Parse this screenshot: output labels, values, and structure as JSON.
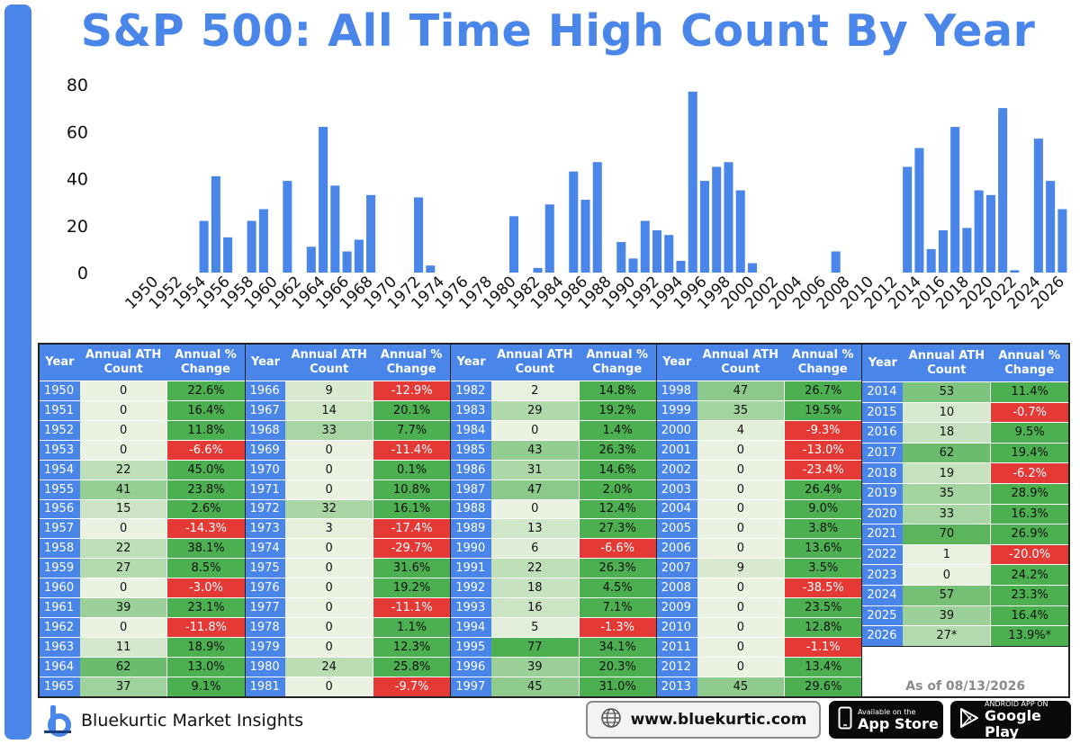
{
  "title": "S&P 500: All Time High Count By Year",
  "chart_data": {
    "type": "bar",
    "title": "S&P 500: All Time High Count By Year",
    "xlabel": "",
    "ylabel": "",
    "ylim": [
      0,
      80
    ],
    "yticks": [
      0,
      20,
      40,
      60,
      80
    ],
    "grid": false,
    "color": "#4a86ea",
    "x": [
      1950,
      1951,
      1952,
      1953,
      1954,
      1955,
      1956,
      1957,
      1958,
      1959,
      1960,
      1961,
      1962,
      1963,
      1964,
      1965,
      1966,
      1967,
      1968,
      1969,
      1970,
      1971,
      1972,
      1973,
      1974,
      1975,
      1976,
      1977,
      1978,
      1979,
      1980,
      1981,
      1982,
      1983,
      1984,
      1985,
      1986,
      1987,
      1988,
      1989,
      1990,
      1991,
      1992,
      1993,
      1994,
      1995,
      1996,
      1997,
      1998,
      1999,
      2000,
      2001,
      2002,
      2003,
      2004,
      2005,
      2006,
      2007,
      2008,
      2009,
      2010,
      2011,
      2012,
      2013,
      2014,
      2015,
      2016,
      2017,
      2018,
      2019,
      2020,
      2021,
      2022,
      2023,
      2024,
      2025,
      2026
    ],
    "xtick_labels": [
      "1950",
      "1952",
      "1954",
      "1956",
      "1958",
      "1960",
      "1962",
      "1964",
      "1966",
      "1968",
      "1970",
      "1972",
      "1974",
      "1976",
      "1978",
      "1980",
      "1982",
      "1984",
      "1986",
      "1988",
      "1990",
      "1992",
      "1994",
      "1996",
      "1998",
      "2000",
      "2002",
      "2004",
      "2006",
      "2008",
      "2010",
      "2012",
      "2014",
      "2016",
      "2018",
      "2020",
      "2022",
      "2024",
      "2026"
    ],
    "values": [
      0,
      0,
      0,
      0,
      22,
      41,
      15,
      0,
      22,
      27,
      0,
      39,
      0,
      11,
      62,
      37,
      9,
      14,
      33,
      0,
      0,
      0,
      32,
      3,
      0,
      0,
      0,
      0,
      0,
      0,
      24,
      0,
      2,
      29,
      0,
      43,
      31,
      47,
      0,
      13,
      6,
      22,
      18,
      16,
      5,
      77,
      39,
      45,
      47,
      35,
      4,
      0,
      0,
      0,
      0,
      0,
      0,
      9,
      0,
      0,
      0,
      0,
      0,
      45,
      53,
      10,
      18,
      62,
      19,
      35,
      33,
      70,
      1,
      0,
      57,
      39,
      27
    ]
  },
  "table": {
    "headers": {
      "year": "Year",
      "ath": "Annual ATH Count",
      "pct": "Annual % Change"
    },
    "blocks": [
      [
        [
          "1950",
          "0",
          "22.6%"
        ],
        [
          "1951",
          "0",
          "16.4%"
        ],
        [
          "1952",
          "0",
          "11.8%"
        ],
        [
          "1953",
          "0",
          "-6.6%"
        ],
        [
          "1954",
          "22",
          "45.0%"
        ],
        [
          "1955",
          "41",
          "23.8%"
        ],
        [
          "1956",
          "15",
          "2.6%"
        ],
        [
          "1957",
          "0",
          "-14.3%"
        ],
        [
          "1958",
          "22",
          "38.1%"
        ],
        [
          "1959",
          "27",
          "8.5%"
        ],
        [
          "1960",
          "0",
          "-3.0%"
        ],
        [
          "1961",
          "39",
          "23.1%"
        ],
        [
          "1962",
          "0",
          "-11.8%"
        ],
        [
          "1963",
          "11",
          "18.9%"
        ],
        [
          "1964",
          "62",
          "13.0%"
        ],
        [
          "1965",
          "37",
          "9.1%"
        ]
      ],
      [
        [
          "1966",
          "9",
          "-12.9%"
        ],
        [
          "1967",
          "14",
          "20.1%"
        ],
        [
          "1968",
          "33",
          "7.7%"
        ],
        [
          "1969",
          "0",
          "-11.4%"
        ],
        [
          "1970",
          "0",
          "0.1%"
        ],
        [
          "1971",
          "0",
          "10.8%"
        ],
        [
          "1972",
          "32",
          "16.1%"
        ],
        [
          "1973",
          "3",
          "-17.4%"
        ],
        [
          "1974",
          "0",
          "-29.7%"
        ],
        [
          "1975",
          "0",
          "31.6%"
        ],
        [
          "1976",
          "0",
          "19.2%"
        ],
        [
          "1977",
          "0",
          "-11.1%"
        ],
        [
          "1978",
          "0",
          "1.1%"
        ],
        [
          "1979",
          "0",
          "12.3%"
        ],
        [
          "1980",
          "24",
          "25.8%"
        ],
        [
          "1981",
          "0",
          "-9.7%"
        ]
      ],
      [
        [
          "1982",
          "2",
          "14.8%"
        ],
        [
          "1983",
          "29",
          "19.2%"
        ],
        [
          "1984",
          "0",
          "1.4%"
        ],
        [
          "1985",
          "43",
          "26.3%"
        ],
        [
          "1986",
          "31",
          "14.6%"
        ],
        [
          "1987",
          "47",
          "2.0%"
        ],
        [
          "1988",
          "0",
          "12.4%"
        ],
        [
          "1989",
          "13",
          "27.3%"
        ],
        [
          "1990",
          "6",
          "-6.6%"
        ],
        [
          "1991",
          "22",
          "26.3%"
        ],
        [
          "1992",
          "18",
          "4.5%"
        ],
        [
          "1993",
          "16",
          "7.1%"
        ],
        [
          "1994",
          "5",
          "-1.3%"
        ],
        [
          "1995",
          "77",
          "34.1%"
        ],
        [
          "1996",
          "39",
          "20.3%"
        ],
        [
          "1997",
          "45",
          "31.0%"
        ]
      ],
      [
        [
          "1998",
          "47",
          "26.7%"
        ],
        [
          "1999",
          "35",
          "19.5%"
        ],
        [
          "2000",
          "4",
          "-9.3%"
        ],
        [
          "2001",
          "0",
          "-13.0%"
        ],
        [
          "2002",
          "0",
          "-23.4%"
        ],
        [
          "2003",
          "0",
          "26.4%"
        ],
        [
          "2004",
          "0",
          "9.0%"
        ],
        [
          "2005",
          "0",
          "3.8%"
        ],
        [
          "2006",
          "0",
          "13.6%"
        ],
        [
          "2007",
          "9",
          "3.5%"
        ],
        [
          "2008",
          "0",
          "-38.5%"
        ],
        [
          "2009",
          "0",
          "23.5%"
        ],
        [
          "2010",
          "0",
          "12.8%"
        ],
        [
          "2011",
          "0",
          "-1.1%"
        ],
        [
          "2012",
          "0",
          "13.4%"
        ],
        [
          "2013",
          "45",
          "29.6%"
        ]
      ],
      [
        [
          "2014",
          "53",
          "11.4%"
        ],
        [
          "2015",
          "10",
          "-0.7%"
        ],
        [
          "2016",
          "18",
          "9.5%"
        ],
        [
          "2017",
          "62",
          "19.4%"
        ],
        [
          "2018",
          "19",
          "-6.2%"
        ],
        [
          "2019",
          "35",
          "28.9%"
        ],
        [
          "2020",
          "33",
          "16.3%"
        ],
        [
          "2021",
          "70",
          "26.9%"
        ],
        [
          "2022",
          "1",
          "-20.0%"
        ],
        [
          "2023",
          "0",
          "24.2%"
        ],
        [
          "2024",
          "57",
          "23.3%"
        ],
        [
          "2025",
          "39",
          "16.4%"
        ],
        [
          "2026",
          "27*",
          "13.9%*"
        ]
      ]
    ],
    "as_of": "As of 08/13/2026"
  },
  "colors": {
    "accent": "#4a86ea",
    "positive": "#4caf50",
    "negative": "#e53935"
  },
  "footer": {
    "brand": "Bluekurtic Market Insights",
    "logo_letter": "b",
    "website": "www.bluekurtic.com",
    "app_store_small": "Available on the",
    "app_store_big": "App Store",
    "play_small": "ANDROID APP ON",
    "play_big": "Google Play"
  }
}
